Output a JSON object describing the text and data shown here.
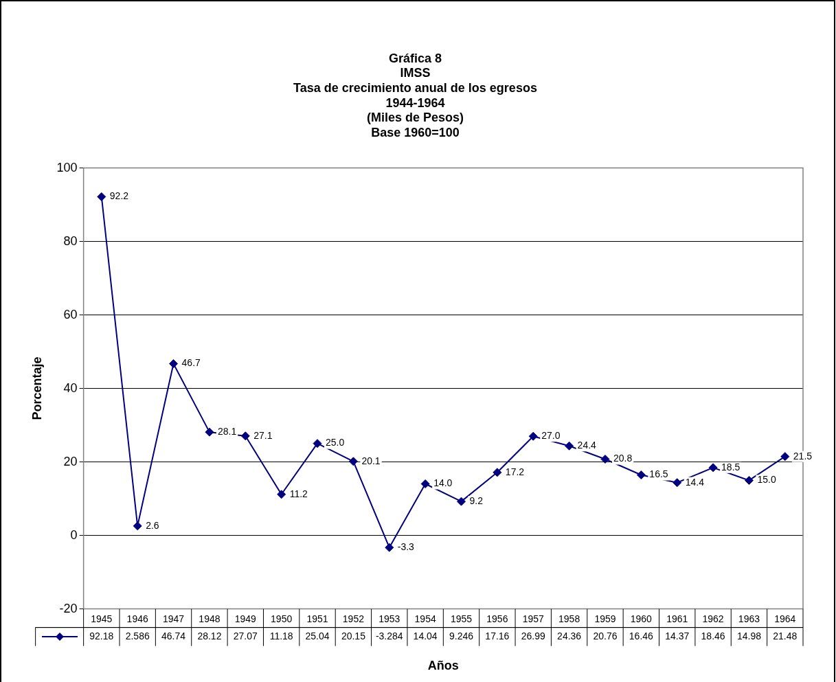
{
  "chart_data": {
    "type": "line",
    "title": "Gráfica 8\nIMSS\nTasa de crecimiento anual de los egresos\n1944-1964\n(Miles de Pesos)\nBase 1960=100",
    "xlabel": "Años",
    "ylabel": "Porcentaje",
    "categories": [
      "1945",
      "1946",
      "1947",
      "1948",
      "1949",
      "1950",
      "1951",
      "1952",
      "1953",
      "1954",
      "1955",
      "1956",
      "1957",
      "1958",
      "1959",
      "1960",
      "1961",
      "1962",
      "1963",
      "1964"
    ],
    "series": [
      {
        "color": "#000080",
        "values": [
          92.18,
          2.586,
          46.74,
          28.12,
          27.07,
          11.18,
          25.04,
          20.15,
          -3.284,
          14.04,
          9.246,
          17.16,
          26.99,
          24.36,
          20.76,
          16.46,
          14.37,
          18.46,
          14.98,
          21.48
        ],
        "value_labels": [
          "92.18",
          "2.586",
          "46.74",
          "28.12",
          "27.07",
          "11.18",
          "25.04",
          "20.15",
          "-3.284",
          "14.04",
          "9.246",
          "17.16",
          "26.99",
          "24.36",
          "20.76",
          "16.46",
          "14.37",
          "18.46",
          "14.98",
          "21.48"
        ]
      }
    ],
    "annotations": [
      {
        "text": "92.2",
        "x": "1945",
        "y": 92.18
      },
      {
        "text": "2.6",
        "x": "1946",
        "y": 2.586
      },
      {
        "text": "46.7",
        "x": "1947",
        "y": 46.74
      },
      {
        "text": "28.1",
        "x": "1948",
        "y": 28.12
      },
      {
        "text": "27.1",
        "x": "1949",
        "y": 27.07
      },
      {
        "text": "11.2",
        "x": "1950",
        "y": 11.18
      },
      {
        "text": "25.0",
        "x": "1951",
        "y": 25.04
      },
      {
        "text": "20.1",
        "x": "1952",
        "y": 20.15
      },
      {
        "text": "-3.3",
        "x": "1953",
        "y": -3.284
      },
      {
        "text": "14.0",
        "x": "1954",
        "y": 14.04
      },
      {
        "text": "9.2",
        "x": "1955",
        "y": 9.246
      },
      {
        "text": "17.2",
        "x": "1956",
        "y": 17.16
      },
      {
        "text": "27.0",
        "x": "1957",
        "y": 26.99
      },
      {
        "text": "24.4",
        "x": "1958",
        "y": 24.36
      },
      {
        "text": "20.8",
        "x": "1959",
        "y": 20.76
      },
      {
        "text": "16.5",
        "x": "1960",
        "y": 16.46
      },
      {
        "text": "14.4",
        "x": "1961",
        "y": 14.37
      },
      {
        "text": "18.5",
        "x": "1962",
        "y": 18.46
      },
      {
        "text": "15.0",
        "x": "1963",
        "y": 14.98
      },
      {
        "text": "21.5",
        "x": "1964",
        "y": 21.48
      }
    ],
    "ylim": [
      -20,
      100
    ],
    "yticks": [
      -20,
      0,
      20,
      40,
      60,
      80,
      100
    ],
    "grid": "y",
    "legend": false,
    "marker": "diamond",
    "line_style": "solid"
  }
}
